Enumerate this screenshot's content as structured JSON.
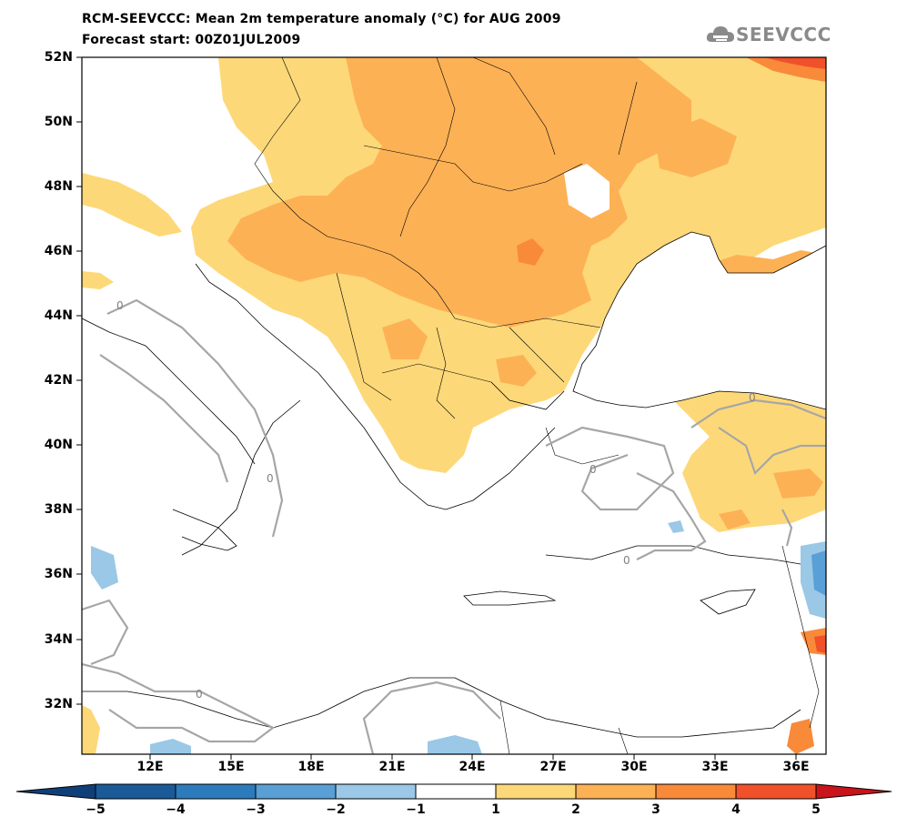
{
  "title": {
    "line1": "RCM-SEEVCCC: Mean 2m temperature anomaly (°C) for AUG 2009",
    "line2": "Forecast start: 00Z01JUL2009"
  },
  "logo": {
    "text": "SEEVCCC",
    "icon": "cloud-logo-icon"
  },
  "map": {
    "lat_labels": [
      "52N",
      "50N",
      "48N",
      "46N",
      "44N",
      "42N",
      "40N",
      "38N",
      "36N",
      "34N",
      "32N"
    ],
    "lon_labels": [
      "12E",
      "15E",
      "18E",
      "21E",
      "24E",
      "27E",
      "30E",
      "33E",
      "36E"
    ],
    "contour_label": "0"
  },
  "colorbar": {
    "labels": [
      "−5",
      "−4",
      "−3",
      "−2",
      "−1",
      "1",
      "2",
      "3",
      "4",
      "5"
    ],
    "colors": [
      "#1a5a99",
      "#2c7bbd",
      "#5a9fd6",
      "#9ac8e6",
      "#ffffff",
      "#fdd878",
      "#fdb155",
      "#f98a3a",
      "#f0502a"
    ],
    "low_extend_color": "#0f3f78",
    "high_extend_color": "#c8141a"
  },
  "colors": {
    "land_low": "#fdd878",
    "land_mid": "#fdb155",
    "land_high": "#f98a3a",
    "land_extreme": "#f0502a",
    "cold_light": "#9ac8e6",
    "cold_mid": "#5a9fd6",
    "contour": "#a6a6a6"
  }
}
